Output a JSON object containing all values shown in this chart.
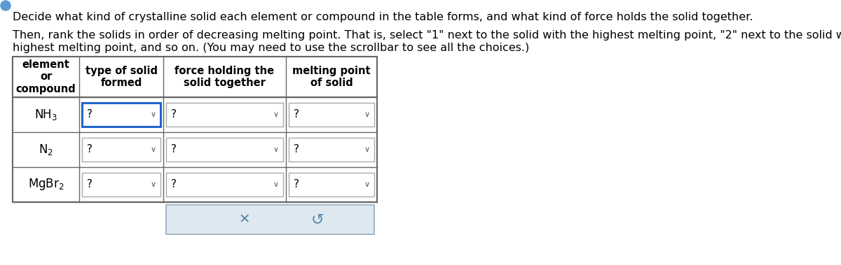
{
  "title_line1": "Decide what kind of crystalline solid each element or compound in the table forms, and what kind of force holds the solid together.",
  "title_line2": "Then, rank the solids in order of decreasing melting point. That is, select \"1\" next to the solid with the highest melting point, \"2\" next to the solid with the next",
  "title_line3": "highest melting point, and so on. (You may need to use the scrollbar to see all the choices.)",
  "bg_color": "#ffffff",
  "text_color": "#000000",
  "table_border_color": "#666666",
  "dropdown_border_active": "#2266cc",
  "dropdown_border_normal": "#aaaaaa",
  "button_bg": "#dde8f0",
  "button_border": "#99aabb",
  "compounds": [
    "NH$_3$",
    "N$_2$",
    "MgBr$_2$"
  ],
  "col_headers": [
    "element\nor\ncompound",
    "type of solid\nformed",
    "force holding the\nsolid together",
    "melting point\nof solid"
  ],
  "font_size_title": 11.5,
  "font_size_header": 10.5,
  "font_size_compound": 12,
  "font_size_dropdown": 11,
  "icon_color": "#5b9bd5"
}
